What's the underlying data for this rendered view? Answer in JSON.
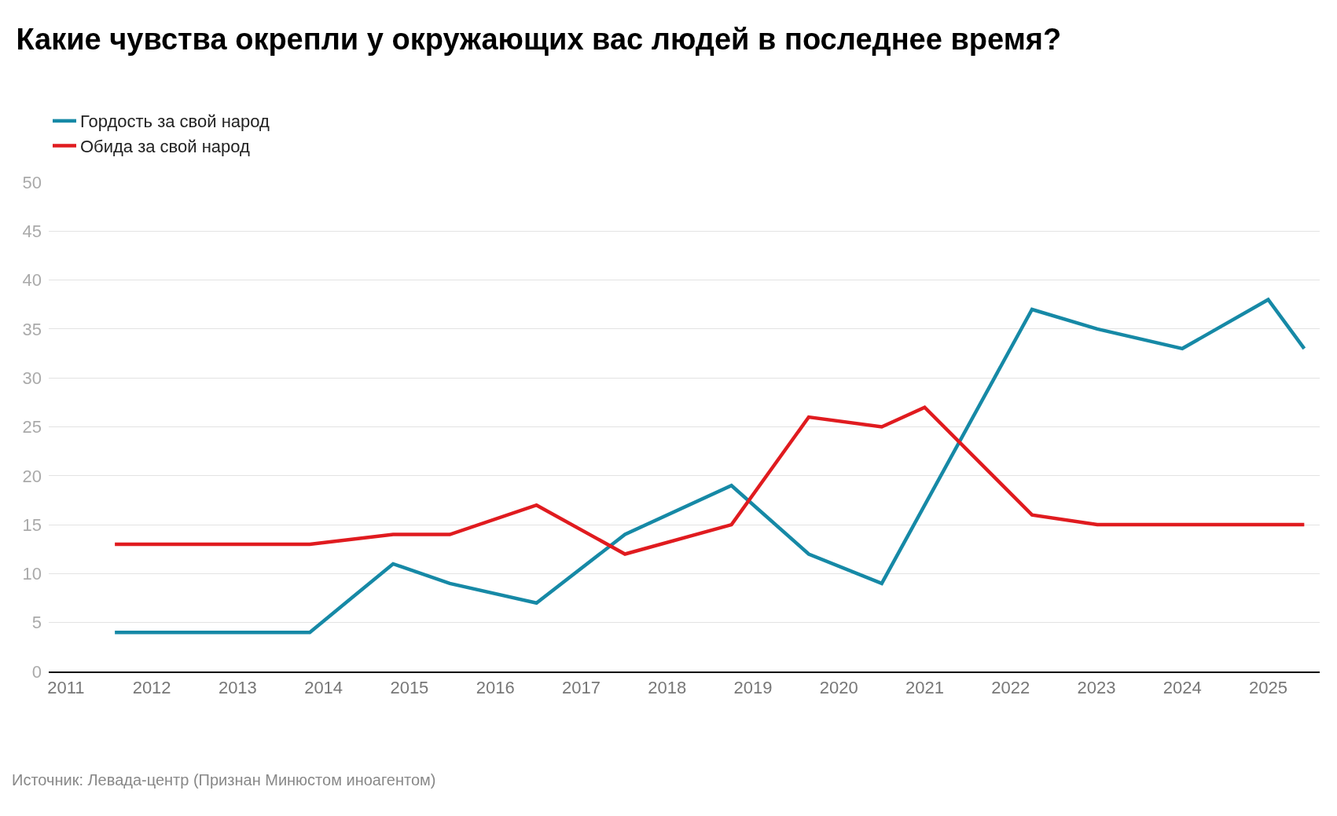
{
  "chart_data": {
    "type": "line",
    "title": "Какие чувства окрепли у окружающих вас людей в последнее время?",
    "annotations": [
      "Источник: Левада-центр (Признан Минюстом иноагентом)"
    ],
    "series": [
      {
        "name": "Гордость за свой народ",
        "color": "#1689a6",
        "x": [
          2011.57,
          2013.84,
          2014.81,
          2015.47,
          2016.48,
          2017.51,
          2018.75,
          2019.65,
          2020.5,
          2022.25,
          2023.01,
          2024.0,
          2025.0,
          2025.42
        ],
        "values": [
          4,
          4,
          11,
          9,
          7,
          14,
          19,
          12,
          9,
          37,
          35,
          33,
          38,
          33
        ]
      },
      {
        "name": "Обида за свой народ",
        "color": "#e01b1f",
        "x": [
          2011.57,
          2013.84,
          2014.81,
          2015.47,
          2016.48,
          2017.51,
          2018.75,
          2019.65,
          2020.5,
          2021.0,
          2022.25,
          2023.01,
          2024.0,
          2025.0,
          2025.42
        ],
        "values": [
          13,
          13,
          14,
          14,
          17,
          12,
          15,
          26,
          25,
          27,
          16,
          15,
          15,
          15,
          15
        ]
      }
    ],
    "xlim": [
      2010.8,
      2025.6
    ],
    "xticks": [
      2011,
      2012,
      2013,
      2014,
      2015,
      2016,
      2017,
      2018,
      2019,
      2020,
      2021,
      2022,
      2023,
      2024,
      2025
    ],
    "ylim": [
      0,
      50
    ],
    "yticks": [
      0,
      5,
      10,
      15,
      20,
      25,
      30,
      35,
      40,
      45,
      50
    ],
    "grid": "y",
    "legend": "top left",
    "line_style": "solid",
    "marker": "none"
  }
}
